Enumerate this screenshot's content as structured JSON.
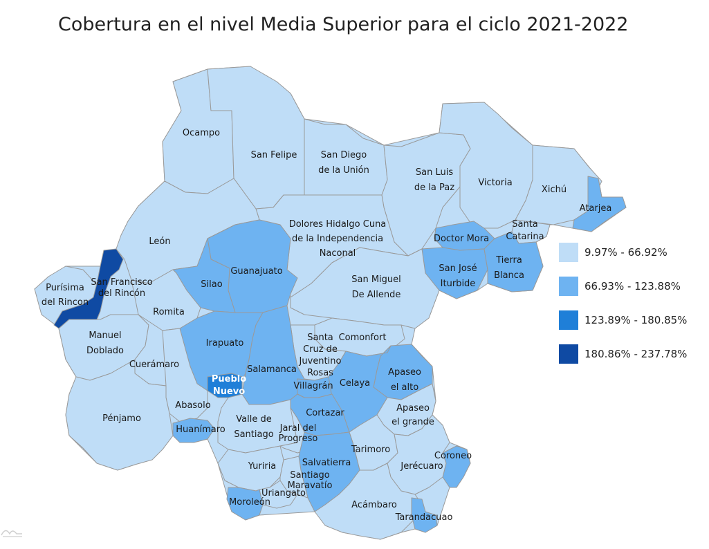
{
  "title": "Cobertura en el nivel Media Superior para el ciclo 2021-2022",
  "colors": {
    "class1": "#bfddf7",
    "class2": "#6eb3f1",
    "class3": "#1f7fd8",
    "class4": "#0f4aa3",
    "border": "#9a9a9a"
  },
  "legend": [
    {
      "label": "9.97% - 66.92%",
      "color": "#bfddf7"
    },
    {
      "label": "66.93% - 123.88%",
      "color": "#6eb3f1"
    },
    {
      "label": "123.89% - 180.85%",
      "color": "#1f7fd8"
    },
    {
      "label": "180.86% - 237.78%",
      "color": "#0f4aa3"
    }
  ],
  "municipalities": [
    {
      "id": "ocampo",
      "lines": [
        "Ocampo"
      ],
      "class": 1
    },
    {
      "id": "san-felipe",
      "lines": [
        "San Felipe"
      ],
      "class": 1
    },
    {
      "id": "san-diego",
      "lines": [
        "San Diego",
        "de la Unión"
      ],
      "class": 1
    },
    {
      "id": "san-luis-paz",
      "lines": [
        "San Luis",
        "de la Paz"
      ],
      "class": 1
    },
    {
      "id": "victoria",
      "lines": [
        "Victoria"
      ],
      "class": 1
    },
    {
      "id": "xichu",
      "lines": [
        "Xichú"
      ],
      "class": 1
    },
    {
      "id": "atarjea",
      "lines": [
        "Atarjea"
      ],
      "class": 2
    },
    {
      "id": "santa-catarina",
      "lines": [
        "Santa",
        "Catarina"
      ],
      "class": 1
    },
    {
      "id": "doctor-mora",
      "lines": [
        "Doctor Mora"
      ],
      "class": 2
    },
    {
      "id": "san-jose-iturbide",
      "lines": [
        "San José",
        "Iturbide"
      ],
      "class": 2
    },
    {
      "id": "tierra-blanca",
      "lines": [
        "Tierra",
        "Blanca"
      ],
      "class": 2
    },
    {
      "id": "dolores-hidalgo",
      "lines": [
        "Dolores Hidalgo Cuna",
        "de la Independencia",
        "Naconal"
      ],
      "class": 1
    },
    {
      "id": "leon",
      "lines": [
        "León"
      ],
      "class": 1
    },
    {
      "id": "purisima",
      "lines": [
        "Purísima",
        "del Rincon"
      ],
      "class": 1
    },
    {
      "id": "san-francisco-rincon",
      "lines": [
        "San Francisco",
        "del Rincón"
      ],
      "class": 4
    },
    {
      "id": "guanajuato",
      "lines": [
        "Guanajuato"
      ],
      "class": 2
    },
    {
      "id": "silao",
      "lines": [
        "Silao"
      ],
      "class": 2
    },
    {
      "id": "san-miguel-allende",
      "lines": [
        "San Miguel",
        "De Allende"
      ],
      "class": 1
    },
    {
      "id": "romita",
      "lines": [
        "Romita"
      ],
      "class": 1
    },
    {
      "id": "manuel-doblado",
      "lines": [
        "Manuel",
        "Doblado"
      ],
      "class": 1
    },
    {
      "id": "irapuato",
      "lines": [
        "Irapuato"
      ],
      "class": 2
    },
    {
      "id": "comonfort",
      "lines": [
        "Comonfort"
      ],
      "class": 1
    },
    {
      "id": "santa-cruz-juventino-rosas",
      "lines": [
        "Santa",
        "Cruz de",
        "Juventino",
        "Rosas"
      ],
      "class": 1
    },
    {
      "id": "salamanca",
      "lines": [
        "Salamanca"
      ],
      "class": 2
    },
    {
      "id": "cueramaro",
      "lines": [
        "Cuerámaro"
      ],
      "class": 1
    },
    {
      "id": "apaseo-el-alto",
      "lines": [
        "Apaseo",
        "el alto"
      ],
      "class": 2
    },
    {
      "id": "pueblo-nuevo",
      "lines": [
        "Pueblo",
        "Nuevo"
      ],
      "class": 3
    },
    {
      "id": "villagran",
      "lines": [
        "Villagrán"
      ],
      "class": 2
    },
    {
      "id": "celaya",
      "lines": [
        "Celaya"
      ],
      "class": 2
    },
    {
      "id": "abasolo",
      "lines": [
        "Abasolo"
      ],
      "class": 1
    },
    {
      "id": "penjamo",
      "lines": [
        "Pénjamo"
      ],
      "class": 1
    },
    {
      "id": "apaseo-el-grande",
      "lines": [
        "Apaseo",
        "el grande"
      ],
      "class": 1
    },
    {
      "id": "cortazar",
      "lines": [
        "Cortazar"
      ],
      "class": 2
    },
    {
      "id": "valle-de-santiago",
      "lines": [
        "Valle de",
        "Santiago"
      ],
      "class": 1
    },
    {
      "id": "jaral-del-progreso",
      "lines": [
        "Jaral del",
        "Progreso"
      ],
      "class": 1
    },
    {
      "id": "huanimaro",
      "lines": [
        "Huanímaro"
      ],
      "class": 2
    },
    {
      "id": "tarimoro",
      "lines": [
        "Tarimoro"
      ],
      "class": 1
    },
    {
      "id": "coroneo",
      "lines": [
        "Coroneo"
      ],
      "class": 2
    },
    {
      "id": "salvatierra",
      "lines": [
        "Salvatierra"
      ],
      "class": 2
    },
    {
      "id": "jerecuaro",
      "lines": [
        "Jerécuaro"
      ],
      "class": 1
    },
    {
      "id": "yuriria",
      "lines": [
        "Yuriria"
      ],
      "class": 1
    },
    {
      "id": "santiago-maravatio",
      "lines": [
        "Santiago",
        "Maravatío"
      ],
      "class": 1
    },
    {
      "id": "uriangato",
      "lines": [
        "Uriangato"
      ],
      "class": 1
    },
    {
      "id": "moroleon",
      "lines": [
        "Moroleón"
      ],
      "class": 2
    },
    {
      "id": "acambaro",
      "lines": [
        "Acámbaro"
      ],
      "class": 1
    },
    {
      "id": "tarandacuao",
      "lines": [
        "Tarandacuao"
      ],
      "class": 2
    }
  ]
}
